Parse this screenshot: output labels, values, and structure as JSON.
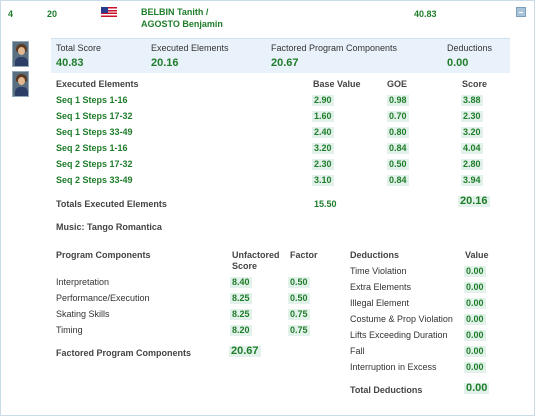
{
  "header": {
    "rank": "4",
    "start_number": "20",
    "flag_icon": "usa-flag-icon",
    "skater_line1": "BELBIN Tanith /",
    "skater_line2": "AGOSTO Benjamin",
    "total": "40.83"
  },
  "summary": {
    "total_score_label": "Total Score",
    "total_score_value": "40.83",
    "executed_label": "Executed Elements",
    "executed_value": "20.16",
    "factored_label": "Factored Program Components",
    "factored_value": "20.67",
    "deductions_label": "Deductions",
    "deductions_value": "0.00"
  },
  "elements": {
    "header": "Executed Elements",
    "col_base": "Base Value",
    "col_goe": "GOE",
    "col_score": "Score",
    "rows": [
      {
        "name": "Seq 1 Steps 1-16",
        "base": "2.90",
        "goe": "0.98",
        "score": "3.88"
      },
      {
        "name": "Seq 1 Steps 17-32",
        "base": "1.60",
        "goe": "0.70",
        "score": "2.30"
      },
      {
        "name": "Seq 1 Steps 33-49",
        "base": "2.40",
        "goe": "0.80",
        "score": "3.20"
      },
      {
        "name": "Seq 2 Steps 1-16",
        "base": "3.20",
        "goe": "0.84",
        "score": "4.04"
      },
      {
        "name": "Seq 2 Steps 17-32",
        "base": "2.30",
        "goe": "0.50",
        "score": "2.80"
      },
      {
        "name": "Seq 2 Steps 33-49",
        "base": "3.10",
        "goe": "0.84",
        "score": "3.94"
      }
    ],
    "totals_label": "Totals Executed Elements",
    "totals_base": "15.50",
    "totals_score": "20.16"
  },
  "music": "Music: Tango Romantica",
  "components": {
    "header": "Program Components",
    "col_unfactored_1": "Unfactored",
    "col_unfactored_2": "Score",
    "col_factor": "Factor",
    "rows": [
      {
        "name": "Interpretation",
        "score": "8.40",
        "factor": "0.50"
      },
      {
        "name": "Performance/Execution",
        "score": "8.25",
        "factor": "0.50"
      },
      {
        "name": "Skating Skills",
        "score": "8.25",
        "factor": "0.75"
      },
      {
        "name": "Timing",
        "score": "8.20",
        "factor": "0.75"
      }
    ],
    "total_label": "Factored Program Components",
    "total_value": "20.67"
  },
  "deductions": {
    "header": "Deductions",
    "col_value": "Value",
    "rows": [
      {
        "name": "Time Violation",
        "value": "0.00"
      },
      {
        "name": "Extra Elements",
        "value": "0.00"
      },
      {
        "name": "Illegal Element",
        "value": "0.00"
      },
      {
        "name": "Costume & Prop Violation",
        "value": "0.00"
      },
      {
        "name": "Lifts Exceeding Duration",
        "value": "0.00"
      },
      {
        "name": "Fall",
        "value": "0.00"
      },
      {
        "name": "Interruption in Excess",
        "value": "0.00"
      }
    ],
    "total_label": "Total Deductions",
    "total_value": "0.00"
  },
  "icons": {
    "collapse": "collapse-minus-icon",
    "photo_1": "skater-photo-icon",
    "photo_2": "skater-photo-icon"
  },
  "colors": {
    "score_green": "#1f7d2a",
    "highlight": "#e2f2ea",
    "summary_bg": "#e9f2fa",
    "border": "#c9dcea"
  }
}
